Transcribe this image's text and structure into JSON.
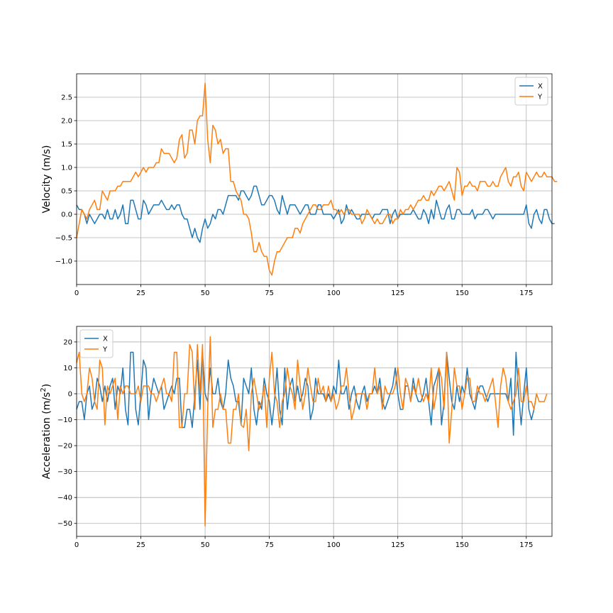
{
  "chart_data": [
    {
      "type": "line",
      "ylabel": "Velocity (m/s)",
      "xlabel": "",
      "xlim": [
        0,
        185
      ],
      "ylim": [
        -1.5,
        3.0
      ],
      "xticks": [
        0,
        25,
        50,
        75,
        100,
        125,
        150,
        175
      ],
      "yticks": [
        -1.0,
        -0.5,
        0.0,
        0.5,
        1.0,
        1.5,
        2.0,
        2.5
      ],
      "ytick_labels": [
        "−1.0",
        "−0.5",
        "0.0",
        "0.5",
        "1.0",
        "1.5",
        "2.0",
        "2.5"
      ],
      "grid": true,
      "legend_position": "top-right",
      "series": [
        {
          "name": "X",
          "color": "#1f77b4",
          "x_start": 0,
          "x_step": 1,
          "values": [
            0.2,
            0.1,
            0.1,
            0.0,
            -0.2,
            0.0,
            -0.1,
            -0.2,
            -0.1,
            0.0,
            0.0,
            -0.1,
            0.1,
            -0.1,
            -0.1,
            0.1,
            -0.1,
            0.0,
            0.2,
            -0.2,
            -0.2,
            0.3,
            0.3,
            0.1,
            -0.1,
            -0.1,
            0.3,
            0.2,
            0.0,
            0.1,
            0.2,
            0.2,
            0.2,
            0.3,
            0.2,
            0.1,
            0.1,
            0.2,
            0.1,
            0.2,
            0.2,
            0.0,
            -0.1,
            -0.1,
            -0.3,
            -0.5,
            -0.3,
            -0.5,
            -0.6,
            -0.3,
            -0.1,
            -0.3,
            -0.2,
            0.0,
            -0.1,
            0.1,
            0.1,
            0.0,
            0.2,
            0.4,
            0.4,
            0.4,
            0.4,
            0.3,
            0.5,
            0.5,
            0.4,
            0.3,
            0.4,
            0.6,
            0.6,
            0.4,
            0.2,
            0.2,
            0.3,
            0.4,
            0.4,
            0.3,
            0.1,
            0.0,
            0.4,
            0.2,
            0.0,
            0.2,
            0.2,
            0.2,
            0.1,
            0.0,
            0.1,
            0.2,
            0.2,
            0.0,
            0.0,
            0.0,
            0.2,
            0.2,
            0.0,
            0.0,
            0.0,
            0.0,
            -0.1,
            0.0,
            0.1,
            -0.2,
            -0.1,
            0.2,
            0.0,
            0.1,
            0.0,
            -0.1,
            -0.1,
            0.0,
            0.0,
            0.0,
            0.0,
            -0.1,
            0.0,
            0.0,
            0.0,
            0.1,
            0.1,
            0.1,
            -0.2,
            0.0,
            0.1,
            -0.1,
            0.0,
            0.0,
            0.0,
            0.0,
            0.0,
            0.1,
            0.0,
            -0.1,
            -0.1,
            0.1,
            0.0,
            -0.2,
            0.1,
            -0.1,
            0.3,
            0.1,
            -0.1,
            -0.1,
            0.1,
            0.2,
            -0.1,
            -0.1,
            0.1,
            0.1,
            0.0,
            0.0,
            0.0,
            0.0,
            0.1,
            -0.1,
            0.0,
            0.0,
            0.0,
            0.1,
            0.1,
            0.0,
            -0.1,
            0.0,
            0.0,
            0.0,
            0.0,
            0.0,
            0.0,
            0.0,
            0.0,
            0.0,
            0.0,
            0.0,
            0.0,
            0.2,
            -0.2,
            -0.3,
            0.0,
            0.1,
            -0.1,
            -0.2,
            0.1,
            0.1,
            -0.1,
            -0.2,
            -0.2
          ]
        },
        {
          "name": "Y",
          "color": "#ff7f0e",
          "x_start": 0,
          "x_step": 1,
          "values": [
            -0.5,
            -0.2,
            0.1,
            0.0,
            -0.1,
            0.1,
            0.2,
            0.3,
            0.1,
            0.1,
            0.5,
            0.4,
            0.3,
            0.5,
            0.5,
            0.5,
            0.6,
            0.6,
            0.7,
            0.7,
            0.7,
            0.7,
            0.8,
            0.9,
            0.8,
            0.9,
            1.0,
            0.9,
            1.0,
            1.0,
            1.0,
            1.1,
            1.1,
            1.4,
            1.3,
            1.3,
            1.3,
            1.2,
            1.1,
            1.2,
            1.6,
            1.7,
            1.2,
            1.3,
            1.8,
            1.8,
            1.5,
            2.0,
            2.1,
            2.1,
            2.8,
            1.6,
            1.1,
            1.9,
            1.8,
            1.5,
            1.6,
            1.3,
            1.4,
            1.4,
            0.7,
            0.7,
            0.5,
            0.4,
            0.3,
            0.0,
            0.0,
            -0.1,
            -0.4,
            -0.8,
            -0.8,
            -0.6,
            -0.8,
            -0.9,
            -0.9,
            -1.2,
            -1.3,
            -1.0,
            -0.8,
            -0.8,
            -0.7,
            -0.6,
            -0.5,
            -0.5,
            -0.5,
            -0.3,
            -0.3,
            -0.4,
            -0.2,
            -0.1,
            0.0,
            0.1,
            0.2,
            0.2,
            0.1,
            0.1,
            0.2,
            0.2,
            0.2,
            0.3,
            0.1,
            0.1,
            0.0,
            0.1,
            0.0,
            0.1,
            0.1,
            0.0,
            0.0,
            0.0,
            0.0,
            -0.2,
            -0.1,
            0.1,
            0.0,
            -0.1,
            -0.2,
            -0.1,
            -0.2,
            -0.2,
            -0.1,
            0.0,
            0.0,
            -0.2,
            -0.1,
            -0.1,
            0.1,
            0.0,
            0.1,
            0.1,
            0.2,
            0.1,
            0.2,
            0.3,
            0.3,
            0.4,
            0.3,
            0.3,
            0.5,
            0.4,
            0.5,
            0.6,
            0.6,
            0.5,
            0.6,
            0.7,
            0.5,
            0.3,
            1.0,
            0.9,
            0.4,
            0.6,
            0.6,
            0.7,
            0.6,
            0.6,
            0.5,
            0.7,
            0.7,
            0.7,
            0.6,
            0.6,
            0.7,
            0.6,
            0.6,
            0.8,
            0.9,
            1.0,
            0.7,
            0.6,
            0.8,
            0.8,
            0.9,
            0.6,
            0.5,
            0.9,
            0.8,
            0.7,
            0.8,
            0.9,
            0.8,
            0.8,
            0.9,
            0.8,
            0.8,
            0.8,
            0.7,
            0.7
          ]
        }
      ]
    },
    {
      "type": "line",
      "ylabel": "Acceleration (m/s",
      "ylabel_sup": "2",
      "ylabel_end": ")",
      "xlabel": "",
      "xlim": [
        0,
        185
      ],
      "ylim": [
        -55,
        26
      ],
      "xticks": [
        0,
        25,
        50,
        75,
        100,
        125,
        150,
        175
      ],
      "yticks": [
        -50,
        -40,
        -30,
        -20,
        -10,
        0,
        10,
        20
      ],
      "ytick_labels": [
        "−50",
        "−40",
        "−30",
        "−20",
        "−10",
        "0",
        "10",
        "20"
      ],
      "grid": true,
      "legend_position": "top-left",
      "series": [
        {
          "name": "X",
          "color": "#1f77b4",
          "x_start": 0,
          "x_step": 1,
          "values": [
            -6,
            -3,
            -3,
            -10,
            0,
            3,
            -6,
            -3,
            6,
            3,
            -3,
            3,
            -3,
            3,
            6,
            -6,
            3,
            0,
            10,
            -6,
            -12,
            16,
            16,
            -6,
            -12,
            0,
            13,
            10,
            -10,
            0,
            6,
            3,
            0,
            3,
            -6,
            -3,
            0,
            3,
            0,
            6,
            6,
            -13,
            -13,
            -6,
            -6,
            -13,
            0,
            13,
            -6,
            16,
            0,
            -3,
            10,
            0,
            0,
            6,
            -3,
            -6,
            0,
            13,
            6,
            3,
            -3,
            -3,
            -12,
            6,
            3,
            0,
            10,
            -6,
            -12,
            -3,
            -6,
            6,
            0,
            -3,
            -12,
            -3,
            10,
            -6,
            -12,
            10,
            -6,
            3,
            6,
            -3,
            3,
            -3,
            0,
            6,
            3,
            -10,
            -6,
            6,
            0,
            0,
            0,
            -3,
            0,
            -3,
            3,
            0,
            13,
            0,
            0,
            3,
            -6,
            0,
            3,
            -3,
            -6,
            0,
            3,
            -3,
            0,
            0,
            3,
            0,
            6,
            -3,
            -6,
            -3,
            0,
            3,
            10,
            0,
            -6,
            -6,
            3,
            3,
            -3,
            6,
            0,
            -3,
            -3,
            0,
            6,
            -3,
            -12,
            3,
            6,
            10,
            -12,
            -3,
            16,
            6,
            -3,
            -6,
            3,
            -3,
            3,
            0,
            10,
            0,
            -3,
            -6,
            0,
            3,
            3,
            0,
            -3,
            0,
            0,
            0,
            0,
            0,
            0,
            0,
            -3,
            6,
            -16,
            16,
            0,
            -12,
            0,
            10,
            -6,
            -10,
            -6,
            0
          ]
        },
        {
          "name": "Y",
          "color": "#ff7f0e",
          "x_start": 0,
          "x_step": 1,
          "values": [
            12,
            16,
            0,
            -3,
            0,
            10,
            6,
            -3,
            -6,
            13,
            10,
            -12,
            3,
            0,
            3,
            6,
            -10,
            3,
            0,
            3,
            3,
            0,
            0,
            0,
            3,
            -3,
            3,
            3,
            3,
            0,
            0,
            -3,
            0,
            3,
            6,
            0,
            0,
            -3,
            16,
            16,
            -13,
            -13,
            0,
            0,
            19,
            16,
            -6,
            19,
            0,
            19,
            -51,
            -6,
            22,
            -13,
            -6,
            -6,
            0,
            -6,
            -6,
            -19,
            -19,
            -6,
            -6,
            0,
            -12,
            -13,
            -6,
            -22,
            0,
            6,
            0,
            -6,
            -3,
            3,
            -13,
            6,
            16,
            0,
            -3,
            -13,
            -3,
            0,
            10,
            3,
            0,
            -6,
            13,
            3,
            -6,
            0,
            10,
            3,
            -3,
            -3,
            6,
            0,
            3,
            -3,
            3,
            -3,
            0,
            -6,
            -3,
            3,
            3,
            10,
            0,
            -10,
            -6,
            0,
            0,
            0,
            0,
            -6,
            0,
            0,
            10,
            0,
            3,
            -6,
            3,
            0,
            0,
            0,
            3,
            10,
            0,
            -6,
            6,
            3,
            -3,
            3,
            0,
            6,
            0,
            -3,
            0,
            -3,
            10,
            -6,
            0,
            10,
            6,
            -6,
            16,
            -19,
            -6,
            10,
            3,
            3,
            -6,
            0,
            6,
            6,
            -3,
            -3,
            3,
            0,
            0,
            -3,
            0,
            3,
            6,
            -3,
            -13,
            3,
            10,
            6,
            -3,
            -6,
            -3,
            0,
            10,
            -3,
            -3,
            3,
            -3,
            -3,
            -6,
            0,
            -3,
            -3,
            -3,
            0
          ]
        }
      ]
    }
  ]
}
